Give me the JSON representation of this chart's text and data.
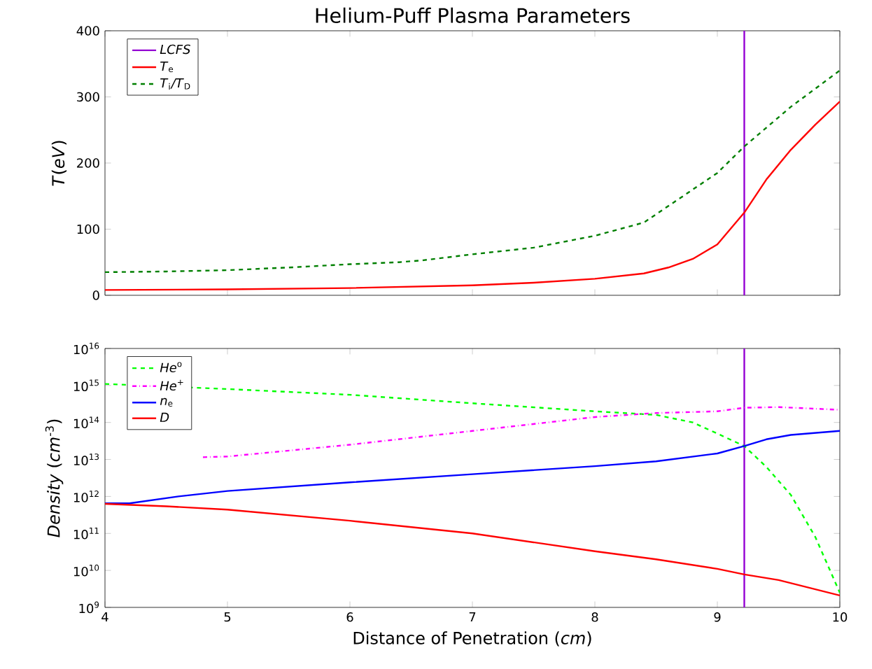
{
  "chart_data": [
    {
      "type": "line",
      "title": "Helium-Puff Plasma Parameters",
      "ylabel": "*T*(*eV*)",
      "xlim": [
        4,
        10
      ],
      "xticks": [
        4,
        5,
        6,
        7,
        8,
        9,
        10
      ],
      "ylim": [
        0,
        400
      ],
      "yticks": [
        0,
        100,
        200,
        300,
        400
      ],
      "tick_labels": "y",
      "legend": "top left",
      "marker": "none",
      "series": [
        {
          "name": "*LCFS*",
          "color": "#9400d3",
          "line_style": "solid",
          "x": [
            9.22,
            9.22
          ],
          "values": [
            0,
            400
          ]
        },
        {
          "name": "*T*$_{e}$",
          "color": "#ff0000",
          "line_style": "solid",
          "x": [
            4,
            5,
            6,
            7,
            7.5,
            8,
            8.4,
            8.6,
            8.8,
            9,
            9.22,
            9.4,
            9.6,
            9.8,
            10
          ],
          "values": [
            8,
            9,
            11,
            15,
            19,
            25,
            33,
            42,
            55,
            77,
            125,
            175,
            220,
            258,
            293
          ]
        },
        {
          "name": "*T*$_{i}$*/T*$_{D}$",
          "color": "#007f00",
          "line_style": "dashed",
          "x": [
            4,
            4.5,
            5,
            5.5,
            6,
            6.4,
            6.6,
            7,
            7.5,
            8,
            8.4,
            8.8,
            9,
            9.22,
            9.6,
            10
          ],
          "values": [
            35,
            36,
            38,
            42,
            47,
            50,
            53,
            62,
            72,
            90,
            110,
            160,
            185,
            225,
            285,
            340
          ]
        }
      ]
    },
    {
      "type": "line",
      "xlabel": "Distance of Penetration (*cm*)",
      "ylabel": "*Density* (*cm*$^{-3}$)",
      "xlim": [
        4,
        10
      ],
      "xticks": [
        4,
        5,
        6,
        7,
        8,
        9,
        10
      ],
      "ylim": [
        1000000000.0,
        1e+16
      ],
      "log": "y",
      "yticks": [
        {
          "value": 1000000000.0,
          "label": "10$^{9}$"
        },
        {
          "value": 10000000000.0,
          "label": "10$^{10}$"
        },
        {
          "value": 100000000000.0,
          "label": "10$^{11}$"
        },
        {
          "value": 1000000000000.0,
          "label": "10$^{12}$"
        },
        {
          "value": 10000000000000.0,
          "label": "10$^{13}$"
        },
        {
          "value": 100000000000000.0,
          "label": "10$^{14}$"
        },
        {
          "value": 1000000000000000.0,
          "label": "10$^{15}$"
        },
        {
          "value": 1e+16,
          "label": "10$^{16}$"
        }
      ],
      "legend": "top left",
      "marker": "none",
      "ref_lines": [
        {
          "axis": "x",
          "value": 9.22,
          "color": "#9400d3"
        }
      ],
      "series": [
        {
          "name": "*He*$^{o}$",
          "color": "#00ff00",
          "line_style": "dashed",
          "x": [
            4,
            5,
            6,
            7,
            8,
            8.5,
            8.8,
            9,
            9.22,
            9.4,
            9.6,
            9.8,
            10
          ],
          "values": [
            1100000000000000.0,
            800000000000000.0,
            560000000000000.0,
            330000000000000.0,
            200000000000000.0,
            160000000000000.0,
            100000000000000.0,
            50000000000000.0,
            23000000000000.0,
            6300000000000.0,
            1100000000000.0,
            80000000000.0,
            2500000000.0
          ]
        },
        {
          "name": "*He*$^{+}$",
          "color": "#ff00ff",
          "line_style": "dashdot",
          "x": [
            4.8,
            5,
            6,
            7,
            8,
            8.5,
            9,
            9.22,
            9.5,
            10
          ],
          "values": [
            11500000000000.0,
            12000000000000.0,
            25000000000000.0,
            59000000000000.0,
            140000000000000.0,
            180000000000000.0,
            200000000000000.0,
            250000000000000.0,
            260000000000000.0,
            220000000000000.0
          ]
        },
        {
          "name": "*n*$_{e}$",
          "color": "#0000ff",
          "line_style": "solid",
          "x": [
            4,
            4.2,
            4.6,
            5,
            6,
            7,
            8,
            8.5,
            9,
            9.22,
            9.4,
            9.6,
            10
          ],
          "values": [
            650000000000.0,
            650000000000.0,
            1000000000000.0,
            1400000000000.0,
            2400000000000.0,
            4000000000000.0,
            6600000000000.0,
            8900000000000.0,
            14500000000000.0,
            23000000000000.0,
            35000000000000.0,
            46000000000000.0,
            59000000000000.0
          ]
        },
        {
          "name": "*D*",
          "color": "#ff0000",
          "line_style": "solid",
          "x": [
            4,
            4.5,
            5,
            6,
            7,
            8,
            8.5,
            9,
            9.22,
            9.5,
            10
          ],
          "values": [
            630000000000.0,
            540000000000.0,
            440000000000.0,
            220000000000.0,
            100000000000.0,
            33000000000.0,
            20000000000.0,
            11000000000.0,
            7800000000.0,
            5500000000.0,
            2100000000.0
          ]
        }
      ]
    }
  ]
}
